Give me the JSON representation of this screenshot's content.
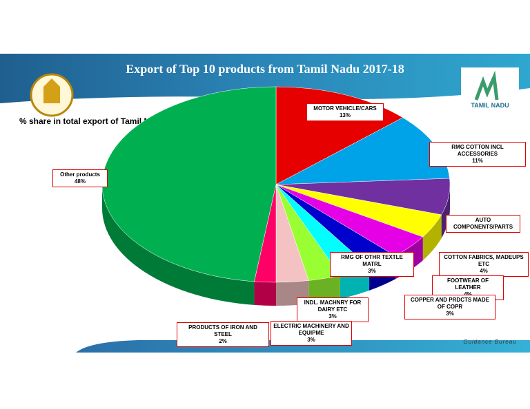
{
  "chart_data": {
    "type": "pie",
    "title": "Export of Top 10 products from Tamil Nadu 2017-18",
    "subtitle": "% share in total export of Tamil Nadu",
    "footer": "Guidance Bureau",
    "logo_text": "TAMIL NADU",
    "categories": [
      "MOTOR VEHICLE/CARS",
      "RMG COTTON INCL ACCESSORIES",
      "AUTO COMPONENTS/PARTS",
      "COTTON FABRICS, MADEUPS ETC",
      "FOOTWEAR OF LEATHER",
      "COPPER AND PRDCTS MADE OF COPR",
      "RMG OF OTHR TEXTLE MATRL",
      "INDL. MACHNRY FOR DAIRY ETC",
      "ELECTRIC MACHINERY AND EQUIPME",
      "PRODUCTS OF IRON AND STEEL",
      "Other products"
    ],
    "values": [
      13,
      11,
      6,
      4,
      4,
      3,
      3,
      3,
      3,
      2,
      48
    ],
    "value_labels": [
      "13%",
      "11%",
      null,
      "4%",
      "4%",
      "3%",
      "3%",
      "3%",
      "3%",
      "2%",
      "48%"
    ],
    "colors": [
      "#e60000",
      "#00a2e8",
      "#7030a0",
      "#ffff00",
      "#e600e6",
      "#0000cc",
      "#00ffff",
      "#99ff33",
      "#f4c2c2",
      "#ff0066",
      "#00b050"
    ]
  }
}
